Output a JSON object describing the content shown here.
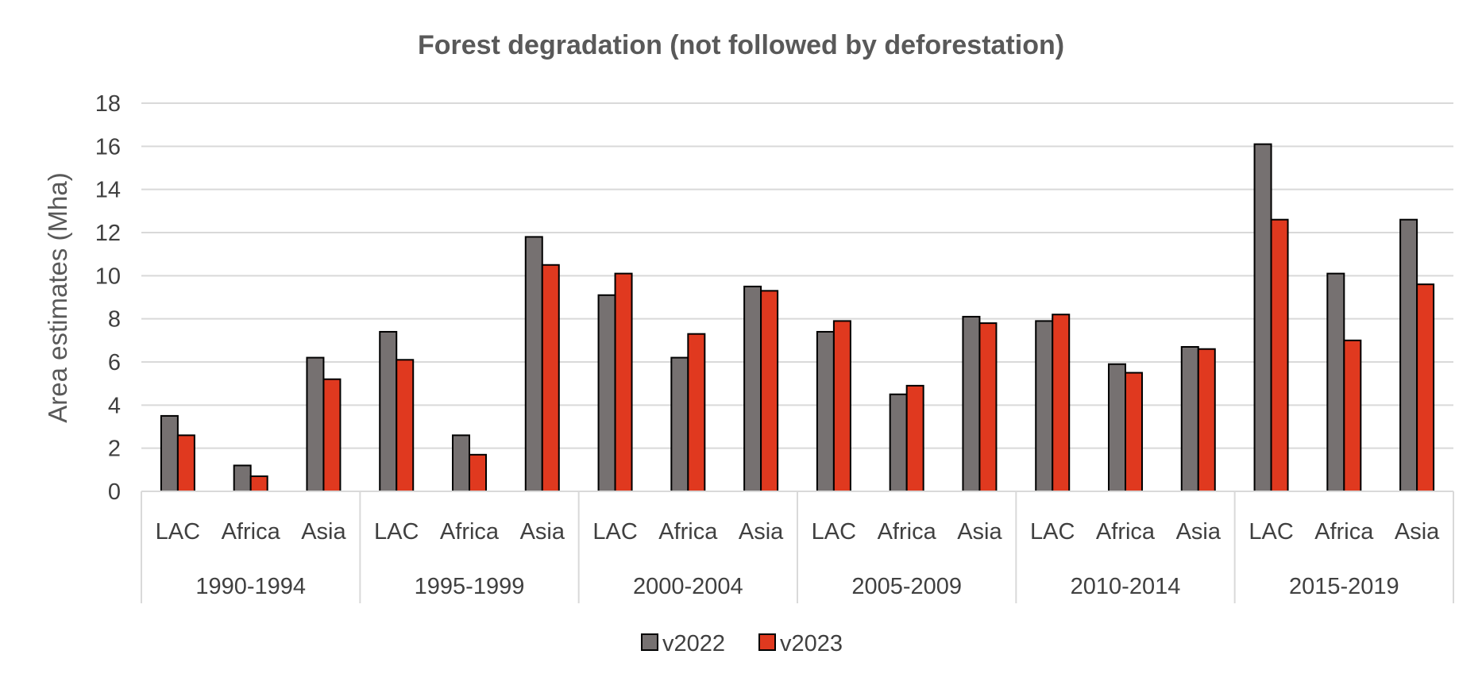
{
  "chart_data": {
    "type": "bar",
    "title": "Forest degradation (not followed by deforestation)",
    "ylabel": "Area estimates (Mha)",
    "xlabel": "",
    "ylim": [
      0,
      18
    ],
    "yticks": [
      0,
      2,
      4,
      6,
      8,
      10,
      12,
      14,
      16,
      18
    ],
    "grid": true,
    "legend_position": "bottom",
    "groups": [
      {
        "label": "1990-1994",
        "categories": [
          "LAC",
          "Africa",
          "Asia"
        ]
      },
      {
        "label": "1995-1999",
        "categories": [
          "LAC",
          "Africa",
          "Asia"
        ]
      },
      {
        "label": "2000-2004",
        "categories": [
          "LAC",
          "Africa",
          "Asia"
        ]
      },
      {
        "label": "2005-2009",
        "categories": [
          "LAC",
          "Africa",
          "Asia"
        ]
      },
      {
        "label": "2010-2014",
        "categories": [
          "LAC",
          "Africa",
          "Asia"
        ]
      },
      {
        "label": "2015-2019",
        "categories": [
          "LAC",
          "Africa",
          "Asia"
        ]
      }
    ],
    "series": [
      {
        "name": "v2022",
        "color": "#767171",
        "values": [
          3.5,
          1.2,
          6.2,
          7.4,
          2.6,
          11.8,
          9.1,
          6.2,
          9.5,
          7.4,
          4.5,
          8.1,
          7.9,
          5.9,
          6.7,
          16.1,
          10.1,
          12.6
        ]
      },
      {
        "name": "v2023",
        "color": "#e0391f",
        "values": [
          2.6,
          0.7,
          5.2,
          6.1,
          1.7,
          10.5,
          10.1,
          7.3,
          9.3,
          7.9,
          4.9,
          7.8,
          8.2,
          5.5,
          6.6,
          12.6,
          7.0,
          9.6
        ]
      }
    ]
  }
}
